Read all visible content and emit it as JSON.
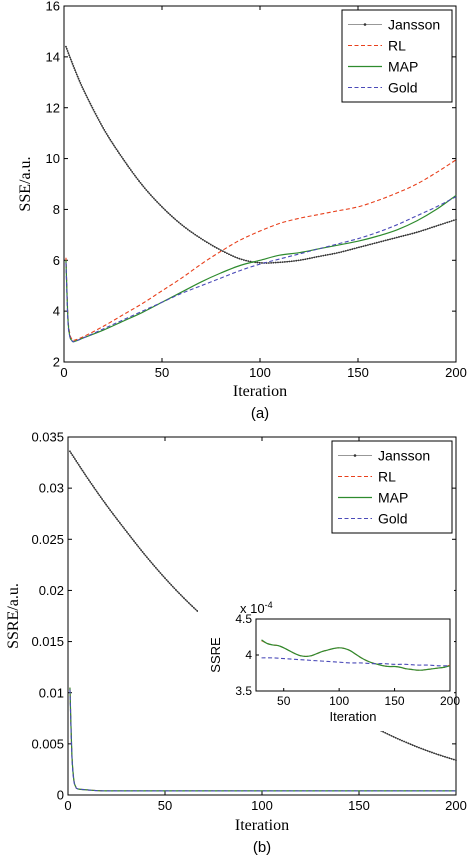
{
  "colors": {
    "jansson": "#333333",
    "rl": "#e8401c",
    "map": "#2e8b2e",
    "gold": "#4a4ab8"
  },
  "chart_data": [
    {
      "type": "line",
      "caption": "(a)",
      "xlabel": "Iteration",
      "ylabel": "SSE/a.u.",
      "xlim": [
        0,
        200
      ],
      "ylim": [
        2,
        16
      ],
      "xticks": [
        0,
        50,
        100,
        150,
        200
      ],
      "yticks": [
        2,
        4,
        6,
        8,
        10,
        12,
        14,
        16
      ],
      "legend": "top-right",
      "series": [
        {
          "name": "Jansson",
          "style": "dotted-marker",
          "x": [
            1,
            5,
            10,
            20,
            30,
            40,
            50,
            60,
            70,
            80,
            90,
            100,
            110,
            120,
            130,
            140,
            150,
            160,
            170,
            180,
            190,
            200
          ],
          "y": [
            14.4,
            13.6,
            12.7,
            11.2,
            10.0,
            8.95,
            8.1,
            7.4,
            6.85,
            6.4,
            6.05,
            5.9,
            5.92,
            6.0,
            6.15,
            6.3,
            6.5,
            6.7,
            6.9,
            7.1,
            7.35,
            7.6
          ]
        },
        {
          "name": "RL",
          "style": "dashed",
          "x": [
            1,
            2,
            3,
            4,
            5,
            10,
            20,
            30,
            40,
            50,
            60,
            70,
            80,
            90,
            100,
            110,
            120,
            130,
            140,
            150,
            160,
            170,
            180,
            190,
            200
          ],
          "y": [
            6.1,
            3.8,
            3.1,
            2.9,
            2.85,
            3.0,
            3.4,
            3.85,
            4.3,
            4.8,
            5.3,
            5.85,
            6.35,
            6.8,
            7.15,
            7.45,
            7.65,
            7.8,
            7.95,
            8.1,
            8.35,
            8.65,
            9.0,
            9.45,
            9.95
          ]
        },
        {
          "name": "MAP",
          "style": "solid",
          "x": [
            1,
            2,
            3,
            4,
            5,
            10,
            20,
            30,
            40,
            50,
            60,
            70,
            80,
            90,
            100,
            110,
            120,
            130,
            140,
            150,
            160,
            170,
            180,
            190,
            200
          ],
          "y": [
            6.0,
            3.7,
            3.0,
            2.85,
            2.8,
            2.95,
            3.25,
            3.6,
            3.95,
            4.35,
            4.75,
            5.15,
            5.5,
            5.8,
            6.0,
            6.2,
            6.3,
            6.45,
            6.6,
            6.75,
            6.95,
            7.2,
            7.55,
            8.0,
            8.55
          ]
        },
        {
          "name": "Gold",
          "style": "dashed",
          "x": [
            1,
            2,
            3,
            4,
            5,
            10,
            20,
            30,
            40,
            50,
            60,
            70,
            80,
            90,
            100,
            110,
            120,
            130,
            140,
            150,
            160,
            170,
            180,
            190,
            200
          ],
          "y": [
            5.9,
            3.6,
            3.0,
            2.85,
            2.8,
            2.95,
            3.3,
            3.65,
            4.0,
            4.35,
            4.7,
            5.0,
            5.3,
            5.6,
            5.85,
            6.05,
            6.25,
            6.45,
            6.65,
            6.85,
            7.1,
            7.4,
            7.75,
            8.1,
            8.5
          ]
        }
      ]
    },
    {
      "type": "line",
      "caption": "(b)",
      "xlabel": "Iteration",
      "ylabel": "SSRE/a.u.",
      "xlim": [
        0,
        200
      ],
      "ylim": [
        0,
        0.035
      ],
      "xticks": [
        0,
        50,
        100,
        150,
        200
      ],
      "yticks": [
        0,
        0.005,
        0.01,
        0.015,
        0.02,
        0.025,
        0.03,
        0.035
      ],
      "ytick_labels": [
        "0",
        "0.005",
        "0.01",
        "0.015",
        "0.02",
        "0.025",
        "0.03",
        "0.035"
      ],
      "legend": "top-right",
      "series": [
        {
          "name": "Jansson",
          "style": "dotted-marker",
          "x": [
            1,
            10,
            20,
            30,
            40,
            50,
            60,
            70,
            80,
            90,
            100,
            110,
            120,
            130,
            140,
            150,
            160,
            170,
            180,
            190,
            200
          ],
          "y": [
            0.0336,
            0.031,
            0.0283,
            0.0258,
            0.0234,
            0.0212,
            0.0192,
            0.0174,
            0.0157,
            0.0142,
            0.0128,
            0.0115,
            0.0103,
            0.0092,
            0.0082,
            0.0073,
            0.0064,
            0.0055,
            0.0047,
            0.004,
            0.0034
          ]
        },
        {
          "name": "RL",
          "style": "dashed",
          "x": [
            1,
            2,
            3,
            4,
            5,
            10,
            20,
            50,
            100,
            150,
            200
          ],
          "y": [
            0.0105,
            0.004,
            0.0015,
            0.0008,
            0.0006,
            0.0005,
            0.0004,
            0.0004,
            0.0004,
            0.0004,
            0.0004
          ]
        },
        {
          "name": "MAP",
          "style": "solid",
          "x": [
            1,
            2,
            3,
            4,
            5,
            10,
            20,
            50,
            100,
            150,
            200
          ],
          "y": [
            0.0105,
            0.004,
            0.0015,
            0.0008,
            0.0006,
            0.0005,
            0.0004,
            0.0004,
            0.0004,
            0.0004,
            0.0004
          ]
        },
        {
          "name": "Gold",
          "style": "dashed",
          "x": [
            1,
            2,
            3,
            4,
            5,
            10,
            20,
            50,
            100,
            150,
            200
          ],
          "y": [
            0.0103,
            0.0038,
            0.0014,
            0.0008,
            0.0006,
            0.0005,
            0.0004,
            0.0004,
            0.0004,
            0.0004,
            0.0004
          ]
        }
      ],
      "inset": {
        "xlabel": "Iteration",
        "ylabel": "SSRE",
        "exponent_label": "x 10",
        "exponent_power": "-4",
        "xlim": [
          25,
          200
        ],
        "ylim": [
          3.5,
          4.5
        ],
        "xticks": [
          50,
          100,
          150,
          200
        ],
        "yticks": [
          3.5,
          4,
          4.5
        ],
        "ytick_labels": [
          "3.5",
          "4",
          "4.5"
        ],
        "series": [
          {
            "name": "RL",
            "style": "dashed",
            "x": [
              30,
              35,
              40,
              45,
              50,
              55,
              60,
              65,
              70,
              75,
              80,
              85,
              90,
              95,
              100,
              105,
              110,
              115,
              120,
              125,
              130,
              135,
              140,
              145,
              150,
              155,
              160,
              165,
              170,
              175,
              180,
              185,
              190,
              195,
              200
            ],
            "y": [
              4.2,
              4.16,
              4.14,
              4.13,
              4.1,
              4.06,
              4.02,
              3.99,
              3.98,
              3.99,
              4.02,
              4.05,
              4.07,
              4.09,
              4.1,
              4.09,
              4.06,
              4.01,
              3.96,
              3.92,
              3.89,
              3.87,
              3.85,
              3.84,
              3.84,
              3.83,
              3.81,
              3.8,
              3.79,
              3.79,
              3.8,
              3.81,
              3.82,
              3.83,
              3.86
            ]
          },
          {
            "name": "MAP",
            "style": "solid",
            "x": [
              30,
              35,
              40,
              45,
              50,
              55,
              60,
              65,
              70,
              75,
              80,
              85,
              90,
              95,
              100,
              105,
              110,
              115,
              120,
              125,
              130,
              135,
              140,
              145,
              150,
              155,
              160,
              165,
              170,
              175,
              180,
              185,
              190,
              195,
              200
            ],
            "y": [
              4.21,
              4.16,
              4.14,
              4.13,
              4.1,
              4.06,
              4.02,
              3.99,
              3.98,
              3.99,
              4.02,
              4.05,
              4.07,
              4.09,
              4.1,
              4.09,
              4.06,
              4.01,
              3.96,
              3.92,
              3.89,
              3.87,
              3.85,
              3.84,
              3.84,
              3.83,
              3.81,
              3.8,
              3.79,
              3.79,
              3.8,
              3.81,
              3.82,
              3.83,
              3.85
            ]
          },
          {
            "name": "Gold",
            "style": "dashed",
            "x": [
              30,
              40,
              50,
              60,
              70,
              80,
              90,
              100,
              110,
              120,
              130,
              140,
              150,
              160,
              170,
              180,
              190,
              200
            ],
            "y": [
              3.96,
              3.96,
              3.95,
              3.94,
              3.93,
              3.92,
              3.91,
              3.9,
              3.89,
              3.89,
              3.88,
              3.88,
              3.87,
              3.87,
              3.86,
              3.86,
              3.85,
              3.85
            ]
          }
        ]
      }
    }
  ]
}
